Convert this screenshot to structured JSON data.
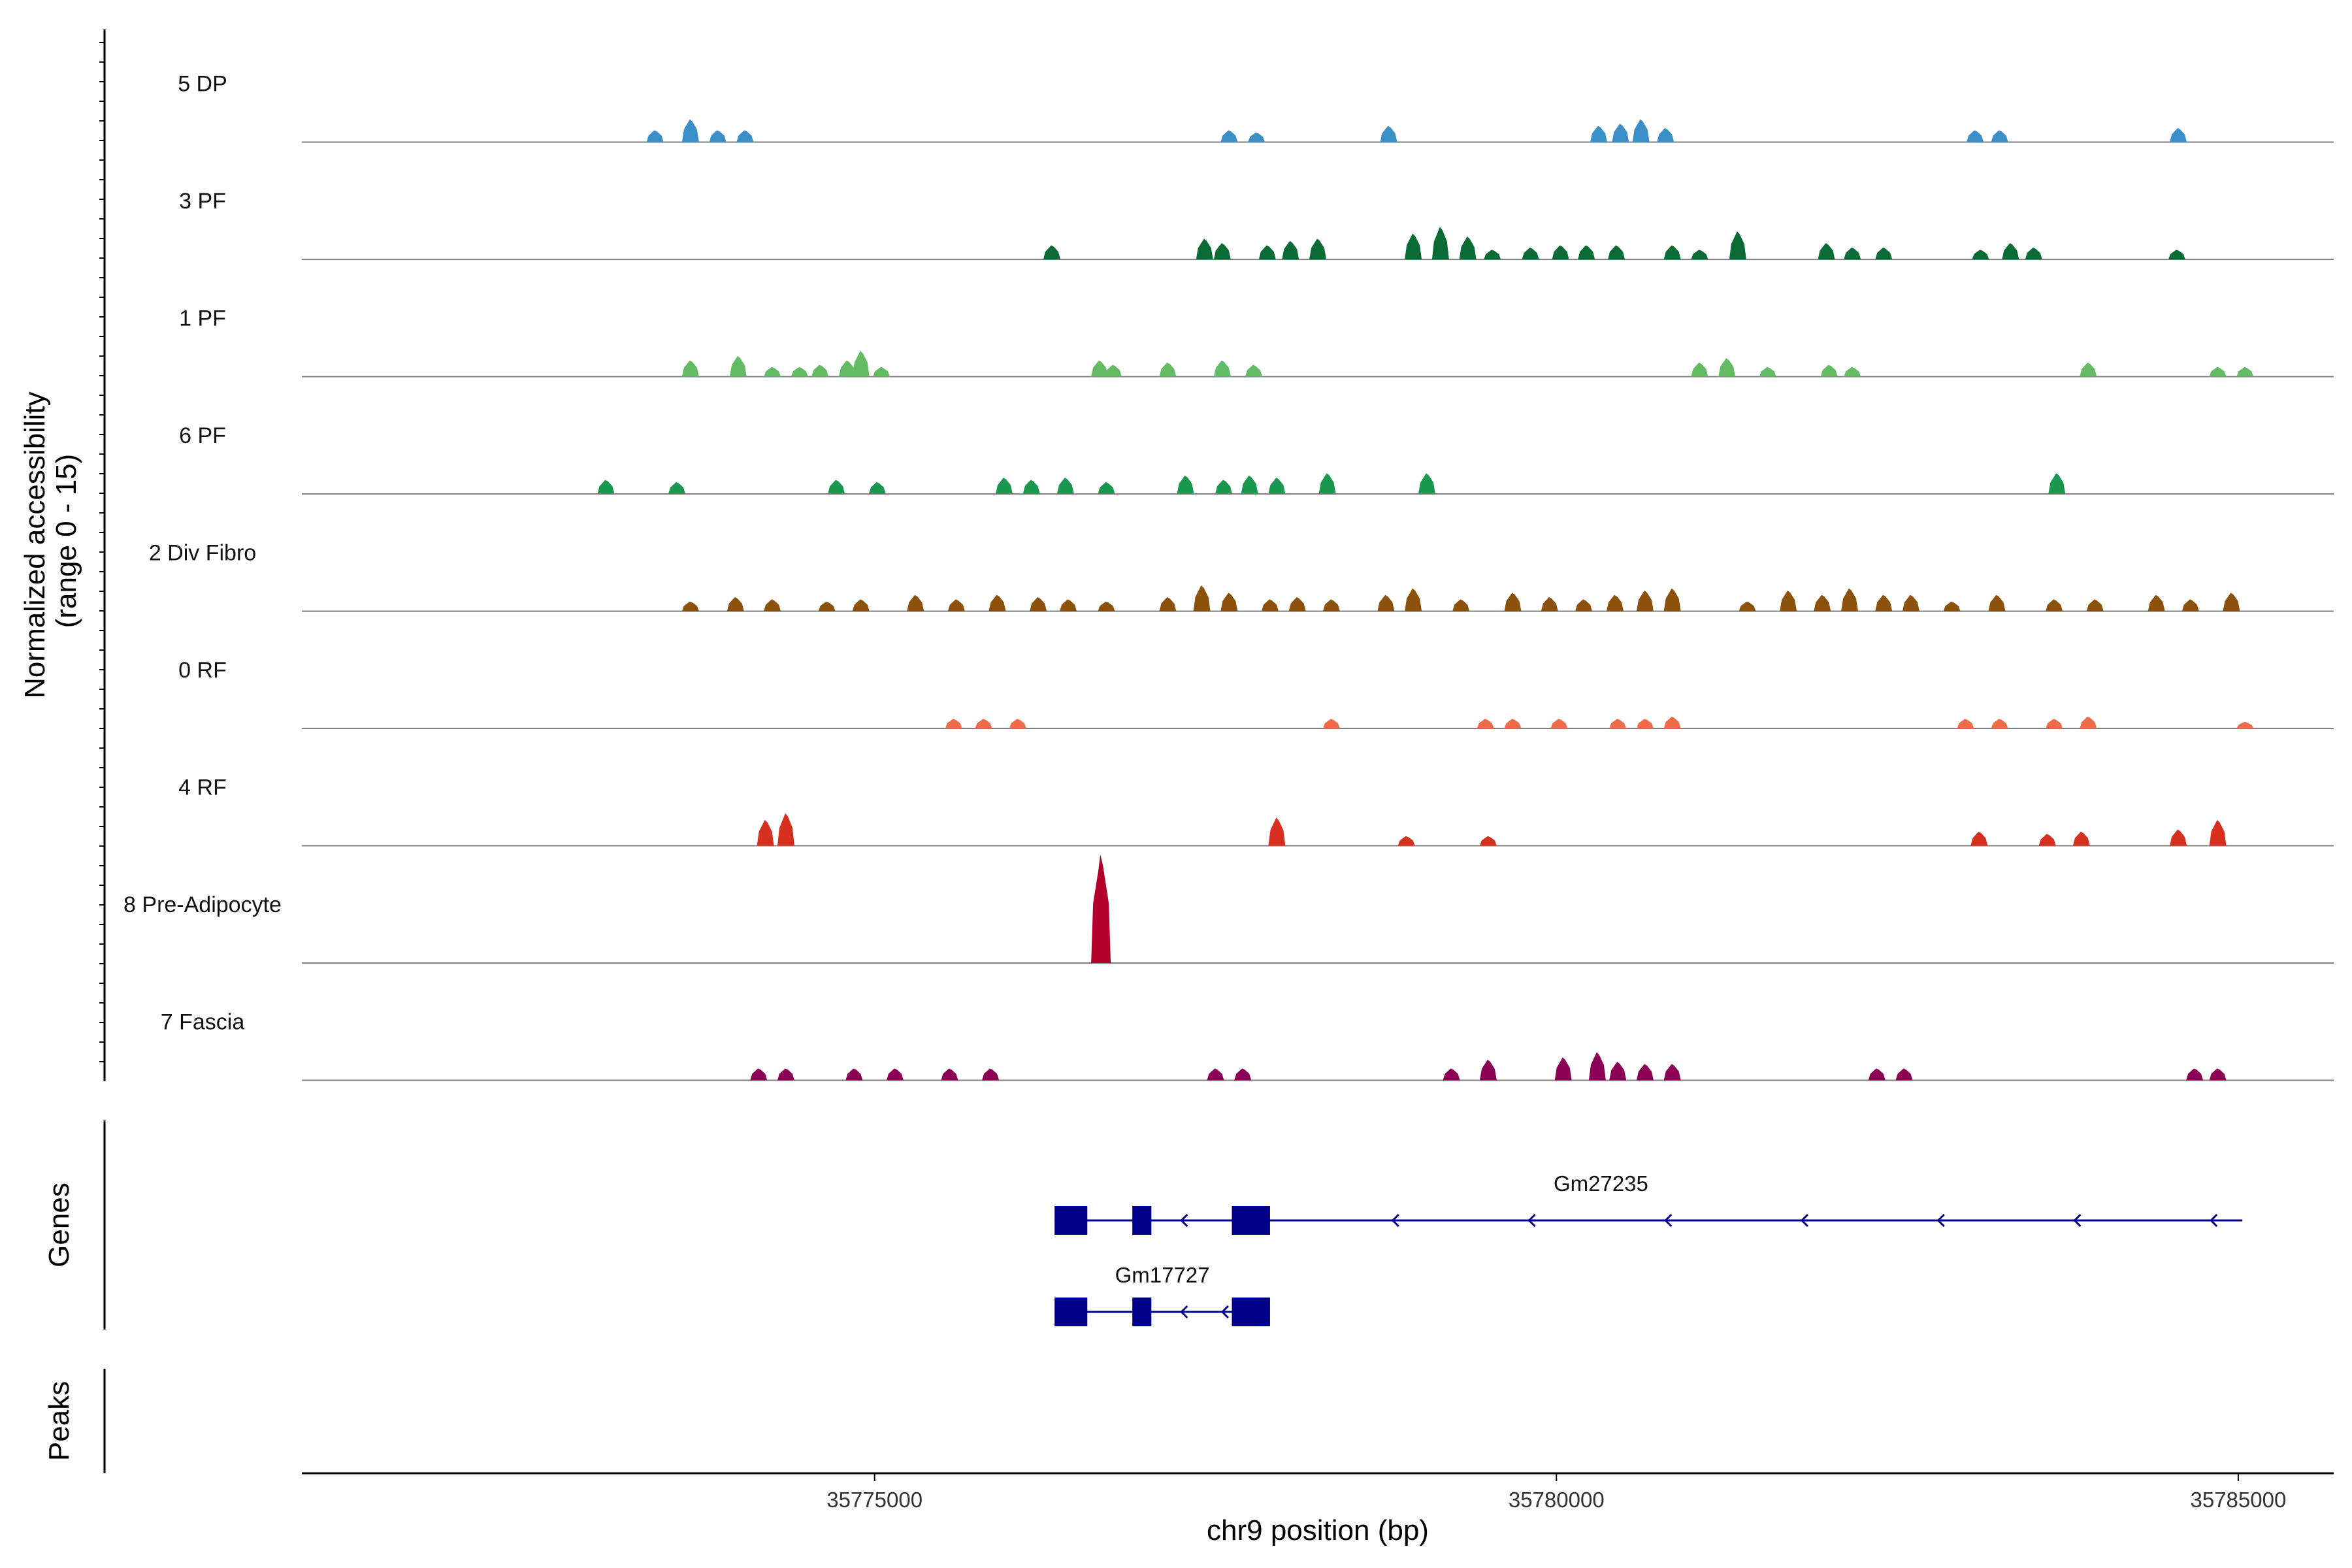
{
  "chart_data": {
    "type": "area",
    "title": "",
    "region": "chr9",
    "xlabel": "chr9 position (bp)",
    "ylabel_lines": [
      "Normalized accessibility",
      "(range 0 - 15)"
    ],
    "xlim": [
      35770800,
      35785700
    ],
    "ylim": [
      0,
      15
    ],
    "xticks": [
      35775000,
      35780000,
      35785000
    ],
    "xtick_labels": [
      "35775000",
      "35780000",
      "35785000"
    ],
    "grid": false,
    "legend": "none",
    "tracks": [
      {
        "name": "5 DP",
        "color": "#3a8fc9",
        "peaks": [
          [
            35773390,
            1.6
          ],
          [
            35773650,
            3.1
          ],
          [
            35773850,
            1.6
          ],
          [
            35774050,
            1.6
          ],
          [
            35777600,
            1.6
          ],
          [
            35777800,
            1.3
          ],
          [
            35778770,
            2.2
          ],
          [
            35780310,
            2.2
          ],
          [
            35780470,
            2.5
          ],
          [
            35780620,
            3.1
          ],
          [
            35780800,
            1.9
          ],
          [
            35783070,
            1.6
          ],
          [
            35783250,
            1.6
          ],
          [
            35784560,
            1.9
          ]
        ]
      },
      {
        "name": "3 PF",
        "color": "#0b6b35",
        "peaks": [
          [
            35776300,
            1.9
          ],
          [
            35777420,
            2.8
          ],
          [
            35777550,
            2.2
          ],
          [
            35777880,
            1.9
          ],
          [
            35778050,
            2.5
          ],
          [
            35778250,
            2.8
          ],
          [
            35778950,
            3.5
          ],
          [
            35779150,
            4.4
          ],
          [
            35779350,
            3.1
          ],
          [
            35779530,
            1.3
          ],
          [
            35779810,
            1.6
          ],
          [
            35780030,
            1.9
          ],
          [
            35780220,
            1.9
          ],
          [
            35780440,
            1.9
          ],
          [
            35780850,
            1.9
          ],
          [
            35781050,
            1.3
          ],
          [
            35781330,
            3.8
          ],
          [
            35781980,
            2.2
          ],
          [
            35782170,
            1.6
          ],
          [
            35782400,
            1.6
          ],
          [
            35783110,
            1.3
          ],
          [
            35783330,
            2.2
          ],
          [
            35783500,
            1.6
          ],
          [
            35784550,
            1.3
          ]
        ]
      },
      {
        "name": "1 PF",
        "color": "#63bc63",
        "peaks": [
          [
            35773650,
            2.2
          ],
          [
            35774000,
            2.8
          ],
          [
            35774250,
            1.3
          ],
          [
            35774450,
            1.3
          ],
          [
            35774600,
            1.6
          ],
          [
            35774800,
            2.2
          ],
          [
            35774900,
            3.5
          ],
          [
            35775050,
            1.3
          ],
          [
            35776650,
            2.2
          ],
          [
            35776750,
            1.6
          ],
          [
            35777150,
            1.9
          ],
          [
            35777550,
            2.2
          ],
          [
            35777780,
            1.6
          ],
          [
            35781050,
            1.9
          ],
          [
            35781250,
            2.5
          ],
          [
            35781550,
            1.3
          ],
          [
            35782000,
            1.6
          ],
          [
            35782170,
            1.3
          ],
          [
            35783900,
            1.9
          ],
          [
            35784850,
            1.3
          ],
          [
            35785050,
            1.3
          ]
        ]
      },
      {
        "name": "6 PF",
        "color": "#1a9850",
        "peaks": [
          [
            35773030,
            1.9
          ],
          [
            35773550,
            1.6
          ],
          [
            35774720,
            1.9
          ],
          [
            35775020,
            1.6
          ],
          [
            35775950,
            2.2
          ],
          [
            35776150,
            1.9
          ],
          [
            35776400,
            2.2
          ],
          [
            35776700,
            1.6
          ],
          [
            35777280,
            2.5
          ],
          [
            35777560,
            1.9
          ],
          [
            35777750,
            2.5
          ],
          [
            35777950,
            2.2
          ],
          [
            35778320,
            2.8
          ],
          [
            35779050,
            2.8
          ],
          [
            35783670,
            2.8
          ]
        ]
      },
      {
        "name": "2 Div Fibro",
        "color": "#8c510a",
        "peaks": [
          [
            35773650,
            1.3
          ],
          [
            35773980,
            1.9
          ],
          [
            35774250,
            1.6
          ],
          [
            35774650,
            1.3
          ],
          [
            35774900,
            1.6
          ],
          [
            35775300,
            2.2
          ],
          [
            35775600,
            1.6
          ],
          [
            35775900,
            2.2
          ],
          [
            35776200,
            1.9
          ],
          [
            35776420,
            1.6
          ],
          [
            35776700,
            1.3
          ],
          [
            35777150,
            1.9
          ],
          [
            35777400,
            3.5
          ],
          [
            35777600,
            2.5
          ],
          [
            35777900,
            1.6
          ],
          [
            35778100,
            1.9
          ],
          [
            35778350,
            1.6
          ],
          [
            35778750,
            2.2
          ],
          [
            35778950,
            3.1
          ],
          [
            35779300,
            1.6
          ],
          [
            35779680,
            2.5
          ],
          [
            35779950,
            1.9
          ],
          [
            35780200,
            1.6
          ],
          [
            35780430,
            2.2
          ],
          [
            35780650,
            2.8
          ],
          [
            35780850,
            3.1
          ],
          [
            35781400,
            1.3
          ],
          [
            35781700,
            2.8
          ],
          [
            35781950,
            2.2
          ],
          [
            35782150,
            3.1
          ],
          [
            35782400,
            2.2
          ],
          [
            35782600,
            2.2
          ],
          [
            35782900,
            1.3
          ],
          [
            35783230,
            2.2
          ],
          [
            35783650,
            1.6
          ],
          [
            35783950,
            1.6
          ],
          [
            35784400,
            2.2
          ],
          [
            35784650,
            1.6
          ],
          [
            35784950,
            2.5
          ]
        ]
      },
      {
        "name": "0 RF",
        "color": "#ef6c4a",
        "peaks": [
          [
            35775580,
            1.3
          ],
          [
            35775800,
            1.3
          ],
          [
            35776050,
            1.3
          ],
          [
            35778350,
            1.3
          ],
          [
            35779480,
            1.3
          ],
          [
            35779680,
            1.3
          ],
          [
            35780020,
            1.3
          ],
          [
            35780450,
            1.3
          ],
          [
            35780650,
            1.3
          ],
          [
            35780850,
            1.6
          ],
          [
            35783000,
            1.3
          ],
          [
            35783250,
            1.3
          ],
          [
            35783650,
            1.3
          ],
          [
            35783900,
            1.6
          ],
          [
            35785050,
            0.9
          ]
        ]
      },
      {
        "name": "4 RF",
        "color": "#d7301f",
        "peaks": [
          [
            35774200,
            3.5
          ],
          [
            35774350,
            4.4
          ],
          [
            35777950,
            3.8
          ],
          [
            35778900,
            1.3
          ],
          [
            35779500,
            1.3
          ],
          [
            35783100,
            1.9
          ],
          [
            35783600,
            1.6
          ],
          [
            35783850,
            1.9
          ],
          [
            35784560,
            2.2
          ],
          [
            35784850,
            3.5
          ]
        ]
      },
      {
        "name": "8 Pre-Adipocyte",
        "color": "#b2002a",
        "peaks": [
          [
            35776660,
            14.7
          ]
        ]
      },
      {
        "name": "7 Fascia",
        "color": "#8b0055",
        "peaks": [
          [
            35774150,
            1.6
          ],
          [
            35774350,
            1.6
          ],
          [
            35774850,
            1.6
          ],
          [
            35775150,
            1.6
          ],
          [
            35775550,
            1.6
          ],
          [
            35775850,
            1.6
          ],
          [
            35777500,
            1.6
          ],
          [
            35777700,
            1.6
          ],
          [
            35779230,
            1.6
          ],
          [
            35779500,
            2.8
          ],
          [
            35780050,
            3.1
          ],
          [
            35780300,
            3.8
          ],
          [
            35780450,
            2.5
          ],
          [
            35780650,
            2.2
          ],
          [
            35780850,
            2.2
          ],
          [
            35782350,
            1.6
          ],
          [
            35782550,
            1.6
          ],
          [
            35784680,
            1.6
          ],
          [
            35784850,
            1.6
          ]
        ]
      }
    ],
    "genes": [
      {
        "name": "Gm27235",
        "start": 35776320,
        "end": 35785030,
        "strand": "-",
        "exons": [
          [
            35776320,
            35776560
          ],
          [
            35776890,
            35777030
          ],
          [
            35777620,
            35777900
          ]
        ],
        "arrows": [
          35777250,
          35778800,
          35779800,
          35780800,
          35781800,
          35782800,
          35783800,
          35784800
        ]
      },
      {
        "name": "Gm17727",
        "start": 35776320,
        "end": 35777900,
        "strand": "-",
        "exons": [
          [
            35776320,
            35776560
          ],
          [
            35776890,
            35777030
          ],
          [
            35777620,
            35777900
          ]
        ],
        "arrows": [
          35777250,
          35777550
        ]
      }
    ],
    "panels": {
      "genes": "Genes",
      "peaks": "Peaks"
    }
  },
  "colors": {
    "baseline": "#808080",
    "gene": "#00008b",
    "axis": "#000000"
  }
}
